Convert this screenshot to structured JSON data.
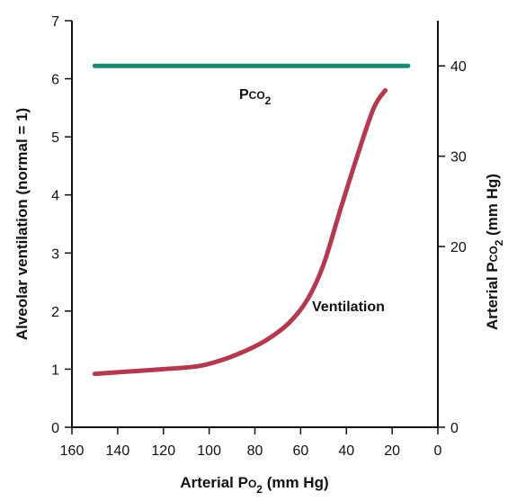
{
  "chart_data": {
    "type": "line",
    "xlabel": {
      "main": "Arterial P",
      "sub_o": "O",
      "sub": "2",
      "unit": " (mm Hg)"
    },
    "ylabel_left": "Alveolar ventilation (normal = 1)",
    "ylabel_right": {
      "main": "Arterial P",
      "sub_co": "CO",
      "sub": "2",
      "unit": " (mm Hg)"
    },
    "x_reversed": true,
    "xlim": [
      160,
      0
    ],
    "ylim_left": [
      0,
      7
    ],
    "ylim_right": [
      0,
      45
    ],
    "x_ticks": [
      "160",
      "140",
      "120",
      "100",
      "80",
      "60",
      "40",
      "20",
      "0"
    ],
    "x_tick_values": [
      160,
      140,
      120,
      100,
      80,
      60,
      40,
      20,
      0
    ],
    "y_left_ticks": [
      "0",
      "1",
      "2",
      "3",
      "4",
      "5",
      "6",
      "7"
    ],
    "y_left_tick_values": [
      0,
      1,
      2,
      3,
      4,
      5,
      6,
      7
    ],
    "y_right_ticks": [
      "0",
      "20",
      "30",
      "40"
    ],
    "y_right_tick_values": [
      0,
      20,
      30,
      40
    ],
    "series": [
      {
        "name": "Ventilation",
        "axis": "left",
        "color": "#b23a4e",
        "points": [
          [
            150,
            0.92
          ],
          [
            135,
            0.96
          ],
          [
            120,
            1.0
          ],
          [
            105,
            1.05
          ],
          [
            95,
            1.15
          ],
          [
            85,
            1.3
          ],
          [
            75,
            1.5
          ],
          [
            65,
            1.8
          ],
          [
            57,
            2.2
          ],
          [
            50,
            2.8
          ],
          [
            43,
            3.7
          ],
          [
            35,
            4.7
          ],
          [
            28,
            5.5
          ],
          [
            23,
            5.8
          ]
        ]
      },
      {
        "name": "PCO2",
        "label": {
          "main": "P",
          "sub_co": "CO",
          "sub": "2"
        },
        "axis": "right",
        "color": "#1a8a74",
        "points": [
          [
            150,
            40
          ],
          [
            13,
            40
          ]
        ]
      }
    ]
  }
}
